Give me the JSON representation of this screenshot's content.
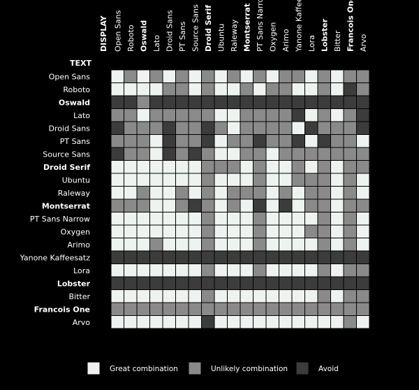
{
  "chart_data": {
    "type": "heatmap",
    "x_axis_title": "DISPLAY",
    "y_axis_title": "TEXT",
    "columns": [
      "Open Sans",
      "Roboto",
      "Oswald",
      "Lato",
      "Droid Sans",
      "PT Sans",
      "Source Sans",
      "Droid Serif",
      "Ubuntu",
      "Raleway",
      "Montserrat",
      "PT Sans Narrow",
      "Oxygen",
      "Arimo",
      "Yanone Kaffeesatz",
      "Lora",
      "Lobster",
      "Bitter",
      "Francois One",
      "Arvo"
    ],
    "rows": [
      "Open Sans",
      "Roboto",
      "Oswald",
      "Lato",
      "Droid Sans",
      "PT Sans",
      "Source Sans",
      "Droid Serif",
      "Ubuntu",
      "Raleway",
      "Montserrat",
      "PT Sans Narrow",
      "Oxygen",
      "Arimo",
      "Yanone Kaffeesatz",
      "Lora",
      "Lobster",
      "Bitter",
      "Francois One",
      "Arvo"
    ],
    "scale": {
      "0": "Great combination",
      "1": "Unlikely combination",
      "2": "Avoid"
    },
    "colors": {
      "0": "#eef3ef",
      "1": "#8a8a8a",
      "2": "#3c3c3c"
    },
    "values": [
      [
        0,
        1,
        0,
        1,
        0,
        1,
        0,
        1,
        0,
        1,
        0,
        1,
        0,
        1,
        1,
        0,
        1,
        0,
        1,
        1
      ],
      [
        0,
        0,
        0,
        0,
        1,
        1,
        0,
        1,
        0,
        0,
        1,
        0,
        1,
        1,
        0,
        0,
        1,
        0,
        2,
        1
      ],
      [
        2,
        2,
        1,
        2,
        2,
        2,
        2,
        2,
        2,
        2,
        2,
        2,
        2,
        2,
        2,
        2,
        2,
        2,
        2,
        2
      ],
      [
        1,
        1,
        0,
        1,
        1,
        1,
        1,
        1,
        0,
        0,
        1,
        1,
        1,
        1,
        2,
        0,
        1,
        0,
        1,
        2
      ],
      [
        2,
        1,
        1,
        1,
        2,
        1,
        1,
        2,
        1,
        0,
        1,
        1,
        1,
        1,
        0,
        2,
        1,
        1,
        1,
        2
      ],
      [
        1,
        1,
        1,
        0,
        2,
        1,
        1,
        2,
        0,
        1,
        1,
        2,
        1,
        1,
        2,
        0,
        2,
        1,
        1,
        0
      ],
      [
        2,
        1,
        1,
        0,
        2,
        1,
        2,
        1,
        0,
        0,
        1,
        1,
        0,
        1,
        1,
        1,
        1,
        1,
        1,
        1
      ],
      [
        0,
        0,
        0,
        0,
        0,
        0,
        0,
        1,
        1,
        1,
        0,
        1,
        0,
        0,
        1,
        0,
        1,
        0,
        1,
        1
      ],
      [
        0,
        0,
        0,
        0,
        0,
        0,
        0,
        1,
        0,
        0,
        0,
        1,
        0,
        0,
        1,
        1,
        1,
        0,
        1,
        0
      ],
      [
        0,
        0,
        1,
        0,
        0,
        1,
        0,
        1,
        0,
        1,
        1,
        1,
        0,
        1,
        0,
        1,
        1,
        0,
        1,
        0
      ],
      [
        1,
        1,
        1,
        0,
        0,
        1,
        2,
        1,
        0,
        1,
        0,
        2,
        0,
        2,
        0,
        1,
        1,
        0,
        1,
        1
      ],
      [
        0,
        0,
        0,
        0,
        0,
        0,
        0,
        1,
        0,
        0,
        0,
        1,
        0,
        0,
        0,
        0,
        1,
        0,
        1,
        0
      ],
      [
        0,
        0,
        0,
        0,
        0,
        0,
        0,
        1,
        0,
        0,
        0,
        1,
        0,
        0,
        0,
        1,
        1,
        0,
        1,
        0
      ],
      [
        0,
        0,
        0,
        1,
        0,
        0,
        0,
        1,
        0,
        0,
        0,
        1,
        0,
        0,
        0,
        0,
        1,
        0,
        1,
        0
      ],
      [
        2,
        2,
        2,
        2,
        2,
        2,
        2,
        2,
        2,
        2,
        2,
        2,
        2,
        2,
        2,
        2,
        2,
        2,
        2,
        2
      ],
      [
        0,
        0,
        0,
        0,
        0,
        0,
        0,
        1,
        0,
        0,
        0,
        1,
        0,
        0,
        0,
        0,
        1,
        0,
        1,
        1
      ],
      [
        2,
        2,
        2,
        2,
        2,
        2,
        2,
        2,
        2,
        2,
        2,
        2,
        2,
        2,
        2,
        2,
        2,
        2,
        2,
        2
      ],
      [
        0,
        0,
        0,
        0,
        0,
        0,
        0,
        1,
        0,
        0,
        0,
        0,
        0,
        0,
        0,
        0,
        1,
        0,
        1,
        1
      ],
      [
        1,
        1,
        1,
        1,
        1,
        1,
        1,
        1,
        1,
        1,
        1,
        1,
        1,
        1,
        1,
        1,
        1,
        1,
        1,
        1
      ],
      [
        0,
        0,
        0,
        0,
        0,
        0,
        0,
        2,
        0,
        0,
        0,
        0,
        0,
        0,
        0,
        0,
        0,
        0,
        1,
        0
      ]
    ],
    "legend": [
      {
        "label": "Great combination",
        "level": 0
      },
      {
        "label": "Unlikely combination",
        "level": 1
      },
      {
        "label": "Avoid",
        "level": 2
      }
    ],
    "legend_placement": "bottom",
    "grid": true
  }
}
